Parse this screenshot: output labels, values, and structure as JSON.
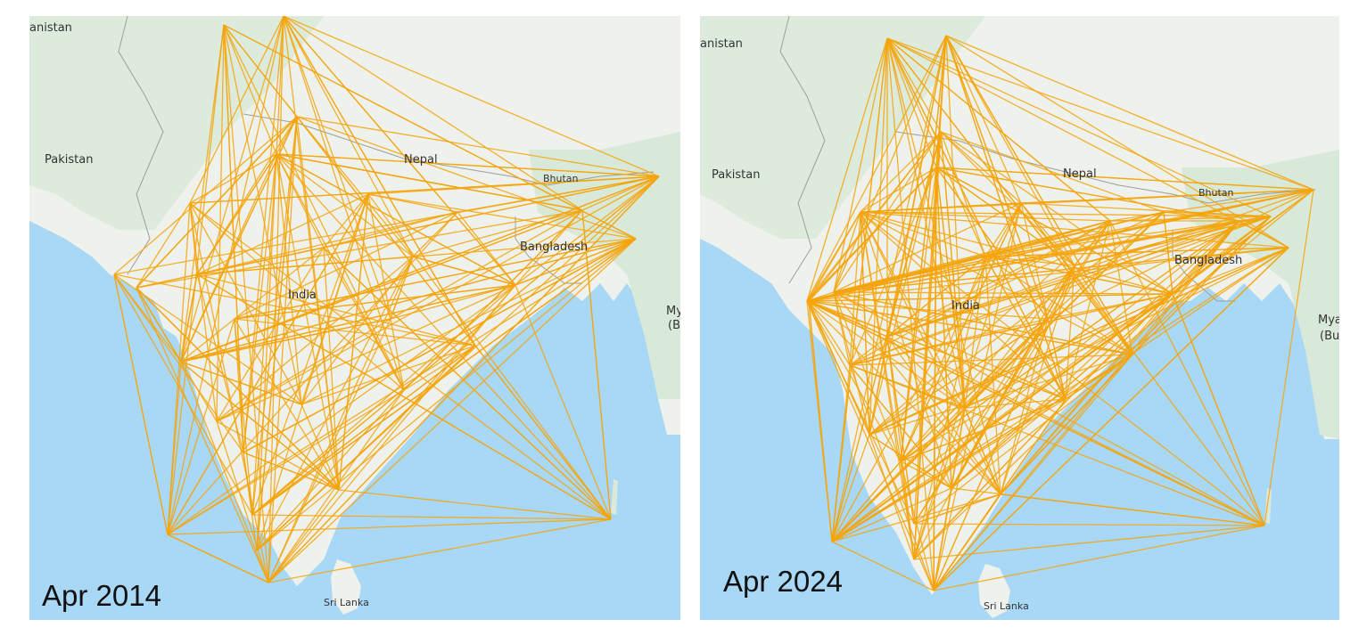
{
  "colors": {
    "route": "#f5a50c",
    "sea": "#a9d8f7",
    "land": "#eef1ec",
    "green": "#d9eadc"
  },
  "panels": [
    {
      "id": "2014",
      "year_label": "Apr 2014",
      "labels": {
        "afghanistan": "anistan",
        "pakistan": "Pakistan",
        "nepal": "Nepal",
        "bhutan": "Bhutan",
        "bangladesh": "Bangladesh",
        "india": "India",
        "myanmar_1": "My",
        "myanmar_2": "(B",
        "srilanka": "Sri Lanka"
      }
    },
    {
      "id": "2024",
      "year_label": "Apr 2024",
      "labels": {
        "afghanistan": "anistan",
        "pakistan": "Pakistan",
        "nepal": "Nepal",
        "bhutan": "Bhutan",
        "bangladesh": "Bangladesh",
        "india": "India",
        "myanmar_1": "Mya",
        "myanmar_2": "(Bu",
        "srilanka": "Sri Lanka"
      }
    }
  ]
}
